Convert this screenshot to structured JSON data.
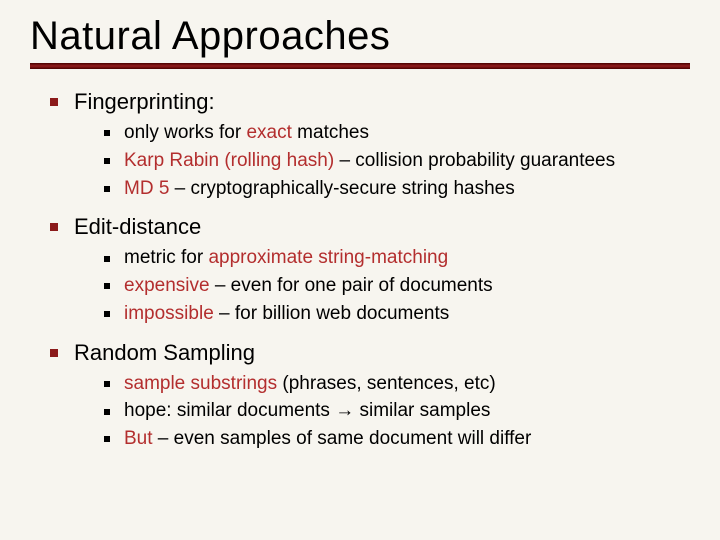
{
  "colors": {
    "background": "#f7f5ef",
    "text": "#000000",
    "highlight": "#b32e2e",
    "lvl1_bullet": "#8b1a1a",
    "lvl2_bullet": "#000000",
    "rule_dark": "#4a0000",
    "rule_mid": "#8b1a1a"
  },
  "typography": {
    "title_fontsize": 40,
    "lvl1_fontsize": 22,
    "lvl2_fontsize": 19
  },
  "title": "Natural Approaches",
  "sections": [
    {
      "heading": "Fingerprinting:",
      "items": [
        {
          "pre": "only works for ",
          "hl": "exact",
          "post": " matches"
        },
        {
          "pre": "",
          "hl": "Karp Rabin (rolling hash)",
          "post": " – collision probability guarantees"
        },
        {
          "pre": "",
          "hl": "MD 5",
          "post": " – cryptographically-secure string hashes"
        }
      ]
    },
    {
      "heading": "Edit-distance",
      "items": [
        {
          "pre": "metric for ",
          "hl": "approximate string-matching",
          "post": ""
        },
        {
          "pre": "",
          "hl": "expensive",
          "post": " – even for one pair of documents"
        },
        {
          "pre": "",
          "hl": "impossible",
          "post": " – for billion web documents"
        }
      ]
    },
    {
      "heading": "Random Sampling",
      "items": [
        {
          "pre": "",
          "hl": "sample substrings",
          "post": " (phrases, sentences, etc)"
        },
        {
          "pre": "hope: similar documents → similar samples",
          "hl": "",
          "post": ""
        },
        {
          "pre": "",
          "hl": "But",
          "post": " – even samples of same document will differ"
        }
      ]
    }
  ]
}
